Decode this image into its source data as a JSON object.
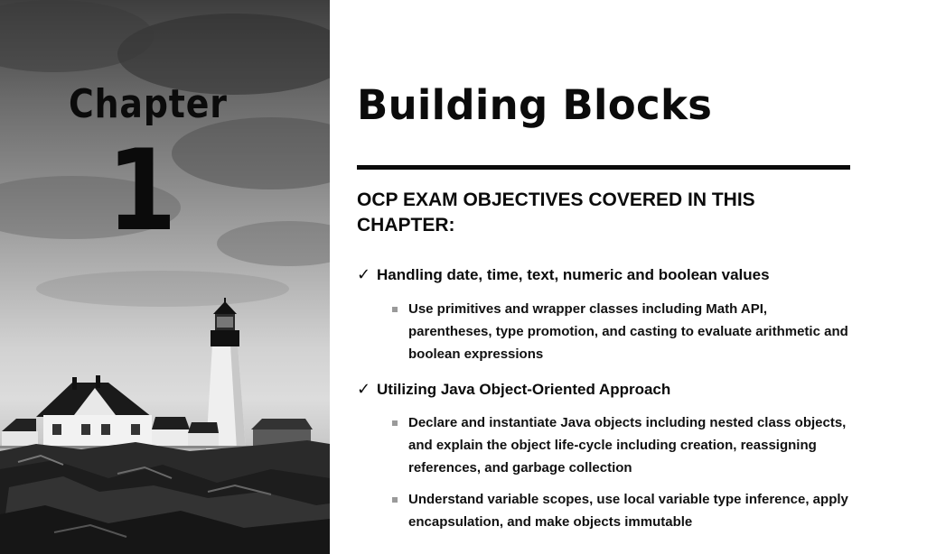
{
  "chapter": {
    "label": "Chapter",
    "number": "1"
  },
  "title": "Building Blocks",
  "objectives_heading": "OCP EXAM OBJECTIVES COVERED IN THIS CHAPTER:",
  "objectives": [
    {
      "title": "Handling date, time, text, numeric and boolean values",
      "items": [
        "Use primitives and wrapper classes including Math API, parentheses, type promotion, and casting to evaluate arithmetic and boolean expressions"
      ]
    },
    {
      "title": "Utilizing Java Object-Oriented Approach",
      "items": [
        "Declare and instantiate Java objects including nested class objects, and explain the object life-cycle including creation, reassigning references, and garbage collection",
        "Understand variable scopes, use local variable type inference, apply encapsulation, and make objects immutable"
      ]
    }
  ],
  "check_glyph": "✓",
  "colors": {
    "text": "#0b0b0b",
    "bullet": "#9a9a9a",
    "rule": "#0b0b0b"
  },
  "photo": {
    "description_icon": "lighthouse-photo"
  }
}
